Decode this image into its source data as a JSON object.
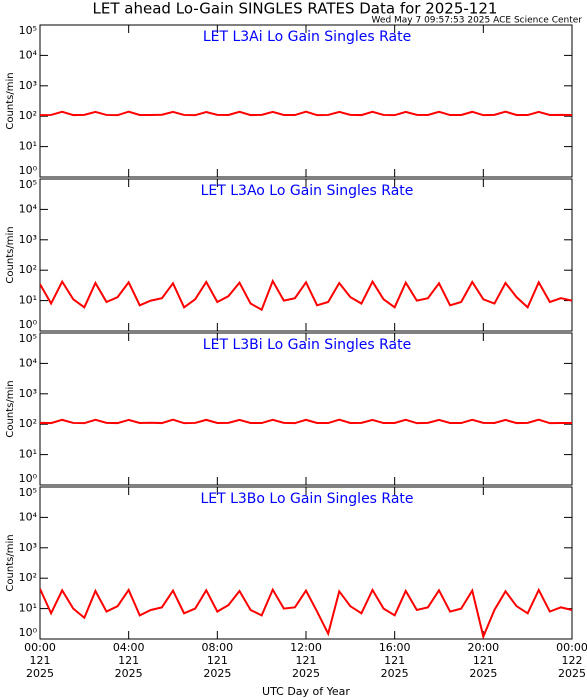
{
  "title": "LET ahead Lo-Gain SINGLES RATES Data for 2025-121",
  "subtitle": "Wed May  7 09:57:53 2025 ACE Science Center",
  "chart_data": [
    {
      "type": "line",
      "title": "LET L3Ai Lo Gain Singles Rate",
      "ylabel": "Counts/min",
      "log": true,
      "color": "#ff0000",
      "xlim": [
        0,
        24
      ],
      "xticks": [
        0,
        4,
        8,
        12,
        16,
        20,
        24
      ],
      "ylim": [
        1,
        100000
      ],
      "yticks": [
        {
          "value": 1,
          "label": "10⁰"
        },
        {
          "value": 10,
          "label": "10¹"
        },
        {
          "value": 100,
          "label": "10²"
        },
        {
          "value": 1000,
          "label": "10³"
        },
        {
          "value": 10000,
          "label": "10⁴"
        },
        {
          "value": 100000,
          "label": "10⁵"
        }
      ],
      "x": [
        0,
        0.5,
        1,
        1.5,
        2,
        2.5,
        3,
        3.5,
        4,
        4.5,
        5,
        5.5,
        6,
        6.5,
        7,
        7.5,
        8,
        8.5,
        9,
        9.5,
        10,
        10.5,
        11,
        11.5,
        12,
        12.5,
        13,
        13.5,
        14,
        14.5,
        15,
        15.5,
        16,
        16.5,
        17,
        17.5,
        18,
        18.5,
        19,
        19.5,
        20,
        20.5,
        21,
        21.5,
        22,
        22.5,
        23,
        23.5,
        24
      ],
      "values": [
        108,
        110,
        140,
        109,
        111,
        138,
        110,
        108,
        141,
        110,
        109,
        112,
        139,
        110,
        108,
        137,
        111,
        110,
        140,
        109,
        111,
        138,
        110,
        109,
        141,
        108,
        110,
        139,
        111,
        109,
        140,
        110,
        108,
        138,
        111,
        110,
        140,
        109,
        110,
        139,
        108,
        111,
        141,
        110,
        109,
        138,
        110,
        111,
        109
      ]
    },
    {
      "type": "line",
      "title": "LET L3Ao Lo Gain Singles Rate",
      "ylabel": "Counts/min",
      "log": true,
      "color": "#ff0000",
      "xlim": [
        0,
        24
      ],
      "xticks": [
        0,
        4,
        8,
        12,
        16,
        20,
        24
      ],
      "ylim": [
        1,
        100000
      ],
      "yticks": [
        {
          "value": 1,
          "label": "10⁰"
        },
        {
          "value": 10,
          "label": "10¹"
        },
        {
          "value": 100,
          "label": "10²"
        },
        {
          "value": 1000,
          "label": "10³"
        },
        {
          "value": 10000,
          "label": "10⁴"
        },
        {
          "value": 100000,
          "label": "10⁵"
        }
      ],
      "x": [
        0,
        0.5,
        1,
        1.5,
        2,
        2.5,
        3,
        3.5,
        4,
        4.5,
        5,
        5.5,
        6,
        6.5,
        7,
        7.5,
        8,
        8.5,
        9,
        9.5,
        10,
        10.5,
        11,
        11.5,
        12,
        12.5,
        13,
        13.5,
        14,
        14.5,
        15,
        15.5,
        16,
        16.5,
        17,
        17.5,
        18,
        18.5,
        19,
        19.5,
        20,
        20.5,
        21,
        21.5,
        22,
        22.5,
        23,
        23.5,
        24
      ],
      "values": [
        35,
        8,
        42,
        11,
        6,
        38,
        9,
        13,
        40,
        7,
        10,
        12,
        37,
        6,
        11,
        41,
        9,
        14,
        39,
        8,
        5,
        44,
        10,
        12,
        40,
        7,
        9,
        38,
        13,
        8,
        42,
        11,
        6,
        39,
        10,
        12,
        37,
        7,
        9,
        41,
        11,
        8,
        38,
        13,
        6,
        40,
        9,
        12,
        10
      ]
    },
    {
      "type": "line",
      "title": "LET L3Bi Lo Gain Singles Rate",
      "ylabel": "Counts/min",
      "log": true,
      "color": "#ff0000",
      "xlim": [
        0,
        24
      ],
      "xticks": [
        0,
        4,
        8,
        12,
        16,
        20,
        24
      ],
      "ylim": [
        1,
        100000
      ],
      "yticks": [
        {
          "value": 1,
          "label": "10⁰"
        },
        {
          "value": 10,
          "label": "10¹"
        },
        {
          "value": 100,
          "label": "10²"
        },
        {
          "value": 1000,
          "label": "10³"
        },
        {
          "value": 10000,
          "label": "10⁴"
        },
        {
          "value": 100000,
          "label": "10⁵"
        }
      ],
      "x": [
        0,
        0.5,
        1,
        1.5,
        2,
        2.5,
        3,
        3.5,
        4,
        4.5,
        5,
        5.5,
        6,
        6.5,
        7,
        7.5,
        8,
        8.5,
        9,
        9.5,
        10,
        10.5,
        11,
        11.5,
        12,
        12.5,
        13,
        13.5,
        14,
        14.5,
        15,
        15.5,
        16,
        16.5,
        17,
        17.5,
        18,
        18.5,
        19,
        19.5,
        20,
        20.5,
        21,
        21.5,
        22,
        22.5,
        23,
        23.5,
        24
      ],
      "values": [
        111,
        109,
        139,
        110,
        108,
        140,
        111,
        109,
        138,
        110,
        112,
        109,
        141,
        108,
        110,
        139,
        110,
        111,
        138,
        110,
        109,
        140,
        111,
        108,
        139,
        110,
        109,
        141,
        110,
        111,
        138,
        109,
        110,
        140,
        108,
        111,
        139,
        110,
        109,
        140,
        111,
        110,
        138,
        109,
        111,
        141,
        108,
        110,
        110
      ]
    },
    {
      "type": "line",
      "title": "LET L3Bo Lo Gain Singles Rate",
      "ylabel": "Counts/min",
      "log": true,
      "color": "#ff0000",
      "xlabel": "UTC Day of Year",
      "xlim": [
        0,
        24
      ],
      "xticks": [
        {
          "value": 0,
          "label": [
            "00:00",
            "121",
            "2025"
          ]
        },
        {
          "value": 4,
          "label": [
            "04:00",
            "121",
            "2025"
          ]
        },
        {
          "value": 8,
          "label": [
            "08:00",
            "121",
            "2025"
          ]
        },
        {
          "value": 12,
          "label": [
            "12:00",
            "121",
            "2025"
          ]
        },
        {
          "value": 16,
          "label": [
            "16:00",
            "121",
            "2025"
          ]
        },
        {
          "value": 20,
          "label": [
            "20:00",
            "121",
            "2025"
          ]
        },
        {
          "value": 24,
          "label": [
            "00:00",
            "122",
            "2025"
          ]
        }
      ],
      "ylim": [
        1,
        100000
      ],
      "yticks": [
        {
          "value": 1,
          "label": "10⁰"
        },
        {
          "value": 10,
          "label": "10¹"
        },
        {
          "value": 100,
          "label": "10²"
        },
        {
          "value": 1000,
          "label": "10³"
        },
        {
          "value": 10000,
          "label": "10⁴"
        },
        {
          "value": 100000,
          "label": "10⁵"
        }
      ],
      "x": [
        0,
        0.5,
        1,
        1.5,
        2,
        2.5,
        3,
        3.5,
        4,
        4.5,
        5,
        5.5,
        6,
        6.5,
        7,
        7.5,
        8,
        8.5,
        9,
        9.5,
        10,
        10.5,
        11,
        11.5,
        12,
        12.5,
        13,
        13.5,
        14,
        14.5,
        15,
        15.5,
        16,
        16.5,
        17,
        17.5,
        18,
        18.5,
        19,
        19.5,
        20,
        20.5,
        21,
        21.5,
        22,
        22.5,
        23,
        23.5,
        24
      ],
      "values": [
        45,
        7,
        40,
        10,
        5,
        38,
        8,
        12,
        41,
        6,
        9,
        11,
        39,
        7,
        10,
        40,
        8,
        13,
        38,
        9,
        6,
        42,
        10,
        11,
        39,
        8,
        1.5,
        37,
        12,
        7,
        41,
        10,
        6,
        38,
        9,
        11,
        40,
        8,
        10,
        39,
        1.2,
        9,
        37,
        12,
        7,
        41,
        8,
        11,
        9
      ]
    }
  ]
}
